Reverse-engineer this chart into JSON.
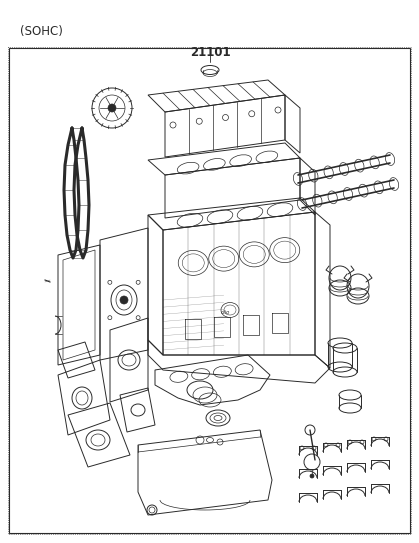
{
  "title_top_left": "(SOHC)",
  "part_number": "21101",
  "bg_color": "#ffffff",
  "line_color": "#2a2a2a",
  "text_color": "#2a2a2a",
  "fig_width": 4.19,
  "fig_height": 5.43,
  "dpi": 100,
  "title_font_size": 8.5,
  "part_num_font_size": 8.5,
  "border_lw": 0.8,
  "main_lw": 0.7,
  "detail_lw": 0.5
}
